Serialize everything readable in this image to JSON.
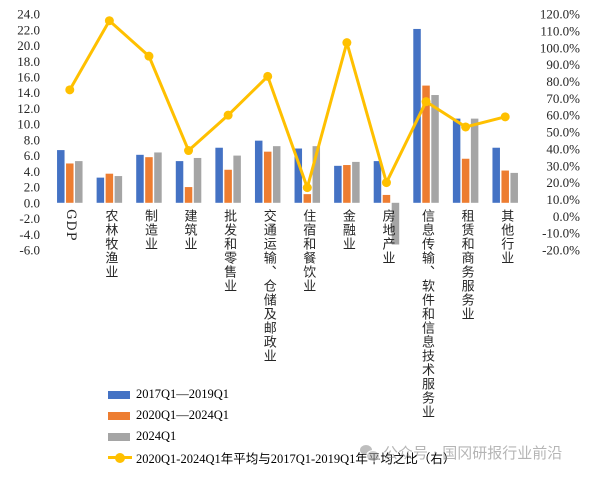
{
  "chart_data": {
    "type": "bar",
    "categories": [
      "GDP",
      "农林牧渔业",
      "制造业",
      "建筑业",
      "批发和零售业",
      "交通运输、仓储及邮政业",
      "住宿和餐饮业",
      "金融业",
      "房地产业",
      "信息传输、软件和信息技术服务业",
      "租赁和商务服务业",
      "其他行业"
    ],
    "series": [
      {
        "name": "2017Q1—2019Q1",
        "type": "bar",
        "color": "#4472C4",
        "values": [
          6.7,
          3.2,
          6.1,
          5.3,
          7.0,
          7.9,
          6.9,
          4.7,
          5.3,
          22.1,
          10.7,
          7.0
        ]
      },
      {
        "name": "2020Q1—2024Q1",
        "type": "bar",
        "color": "#ED7D31",
        "values": [
          5.0,
          3.7,
          5.8,
          2.0,
          4.2,
          6.5,
          1.1,
          4.8,
          1.0,
          14.9,
          5.6,
          4.1
        ]
      },
      {
        "name": "2024Q1",
        "type": "bar",
        "color": "#A5A5A5",
        "values": [
          5.3,
          3.4,
          6.4,
          5.7,
          6.0,
          7.2,
          7.2,
          5.2,
          -5.3,
          13.7,
          10.7,
          3.8
        ]
      },
      {
        "name": "2020Q1-2024Q1年平均与2017Q1-2019Q1年平均之比（右）",
        "type": "line",
        "color": "#FFC000",
        "values": [
          75,
          116,
          95,
          39,
          60,
          83,
          17,
          103,
          20,
          68,
          53,
          59
        ]
      }
    ],
    "y_left": {
      "min": -6,
      "max": 24,
      "ticks": [
        "24.0",
        "22.0",
        "20.0",
        "18.0",
        "16.0",
        "14.0",
        "12.0",
        "10.0",
        "8.0",
        "6.0",
        "4.0",
        "2.0",
        "0.0",
        "-2.0",
        "-4.0",
        "-6.0"
      ]
    },
    "y_right": {
      "min": -20,
      "max": 120,
      "ticks": [
        "120.0%",
        "110.0%",
        "100.0%",
        "90.0%",
        "80.0%",
        "70.0%",
        "60.0%",
        "50.0%",
        "40.0%",
        "30.0%",
        "20.0%",
        "10.0%",
        "0.0%",
        "-10.0%",
        "-20.0%"
      ]
    },
    "grid": false,
    "legend": "bottom-left"
  },
  "watermark": {
    "icon": "wechat-icon",
    "text": "公众号 · 国冈研报行业前沿"
  }
}
